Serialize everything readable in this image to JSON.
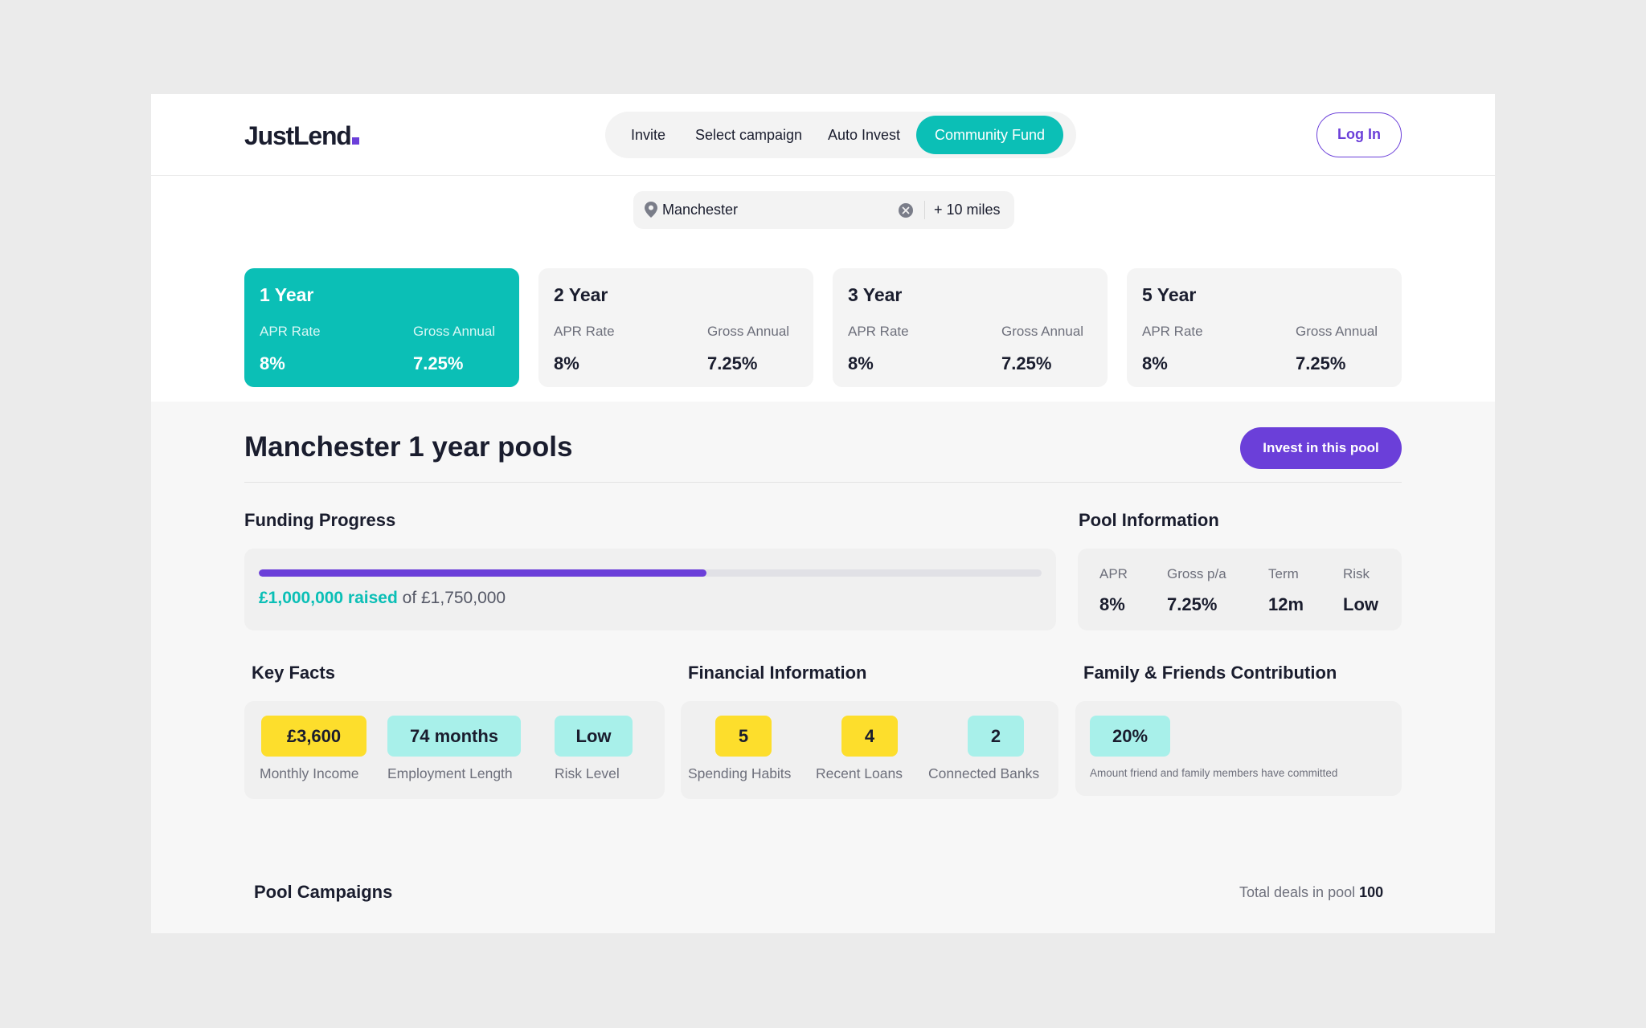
{
  "brand": {
    "name": "JustLend",
    "accent": "#6b3fd9",
    "teal": "#0bbfb6"
  },
  "nav": {
    "items": [
      {
        "label": "Invite",
        "active": false
      },
      {
        "label": "Select campaign",
        "active": false
      },
      {
        "label": "Auto Invest",
        "active": false
      },
      {
        "label": "Community Fund",
        "active": true
      }
    ],
    "login_label": "Log In"
  },
  "search": {
    "location_value": "Manchester",
    "radius_label": "+ 10 miles",
    "location_icon": "map-pin-icon",
    "clear_icon": "clear-icon"
  },
  "terms": [
    {
      "title": "1 Year",
      "apr_label": "APR Rate",
      "apr_value": "8%",
      "gross_label": "Gross Annual",
      "gross_value": "7.25%",
      "active": true
    },
    {
      "title": "2 Year",
      "apr_label": "APR Rate",
      "apr_value": "8%",
      "gross_label": "Gross Annual",
      "gross_value": "7.25%",
      "active": false
    },
    {
      "title": "3 Year",
      "apr_label": "APR Rate",
      "apr_value": "8%",
      "gross_label": "Gross Annual",
      "gross_value": "7.25%",
      "active": false
    },
    {
      "title": "5 Year",
      "apr_label": "APR Rate",
      "apr_value": "8%",
      "gross_label": "Gross Annual",
      "gross_value": "7.25%",
      "active": false
    }
  ],
  "pool": {
    "title": "Manchester 1 year pools",
    "invest_label": "Invest in this pool"
  },
  "funding": {
    "heading": "Funding Progress",
    "raised": "£1,000,000 raised",
    "target": "of £1,750,000",
    "fraction": 0.5714
  },
  "pool_info": {
    "heading": "Pool Information",
    "items": [
      {
        "label": "APR",
        "value": "8%"
      },
      {
        "label": "Gross p/a",
        "value": "7.25%"
      },
      {
        "label": "Term",
        "value": "12m"
      },
      {
        "label": "Risk",
        "value": "Low"
      }
    ]
  },
  "key_facts": {
    "heading": "Key Facts",
    "items": [
      {
        "value": "£3,600",
        "label": "Monthly Income",
        "color": "#fdde2c"
      },
      {
        "value": "74 months",
        "label": "Employment Length",
        "color": "#a8f0ea"
      },
      {
        "value": "Low",
        "label": "Risk Level",
        "color": "#a8f0ea"
      }
    ]
  },
  "financial": {
    "heading": "Financial Information",
    "items": [
      {
        "value": "5",
        "label": "Spending Habits",
        "color": "#fdde2c"
      },
      {
        "value": "4",
        "label": "Recent Loans",
        "color": "#fdde2c"
      },
      {
        "value": "2",
        "label": "Connected Banks",
        "color": "#a8f0ea"
      }
    ]
  },
  "family": {
    "heading": "Family & Friends Contribution",
    "value": "20%",
    "note": "Amount friend and family members have committed"
  },
  "campaigns": {
    "heading": "Pool Campaigns",
    "total_label": "Total deals in pool",
    "total_value": "100"
  }
}
